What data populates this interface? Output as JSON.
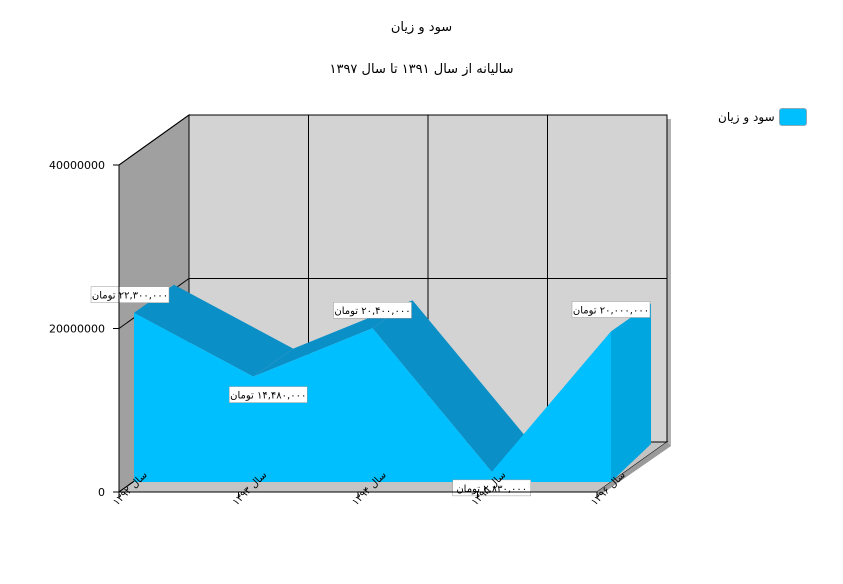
{
  "chart_data": {
    "type": "area",
    "title": "سود و زیان",
    "subtitle": "سالیانه  از سال ۱۳۹۱ تا  سال ۱۳۹۷",
    "categories": [
      "سال ۱۳۹۲",
      "سال ۱۳۹۳",
      "سال ۱۳۹۴",
      "سال ۱۳۹۵",
      "سال ۱۳۹۶"
    ],
    "series": [
      {
        "name": "سود و زیان",
        "values": [
          22300000,
          14480000,
          20400000,
          2830000,
          20000000
        ],
        "labels": [
          "۲۲,۳۰۰,۰۰۰ تومان",
          "۱۴,۴۸۰,۰۰۰ تومان",
          "۲۰,۴۰۰,۰۰۰ تومان",
          "۲,۸۳۰,۰۰۰ تومان",
          "۲۰,۰۰۰,۰۰۰ تومان"
        ],
        "color": "#00bfff"
      }
    ],
    "y_ticks": [
      {
        "value": 0,
        "label": "0"
      },
      {
        "value": 20000000,
        "label": "20000000"
      },
      {
        "value": 40000000,
        "label": "40000000"
      }
    ],
    "ylim": [
      0,
      40000000
    ],
    "grid": true,
    "three_d": true,
    "legend_position": "top-right"
  }
}
